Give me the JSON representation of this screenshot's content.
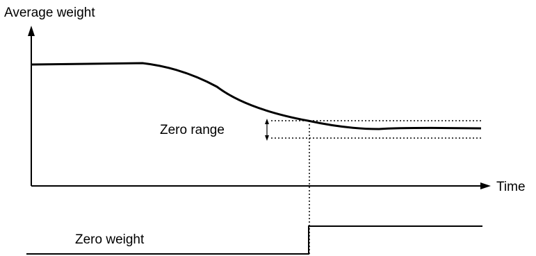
{
  "labels": {
    "y_axis": "Average weight",
    "x_axis": "Time",
    "zero_range": "Zero range",
    "zero_weight": "Zero weight"
  },
  "colors": {
    "ink": "#000000",
    "background": "#ffffff"
  }
}
